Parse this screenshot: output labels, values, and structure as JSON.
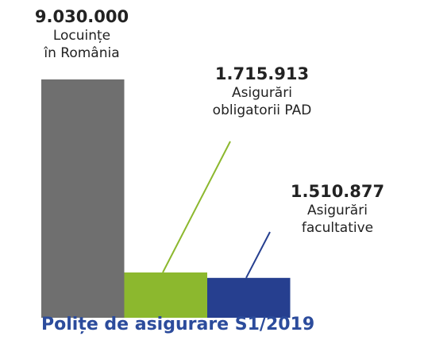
{
  "chart_data": {
    "type": "bar",
    "title": "Polițe de asigurare S1/2019",
    "categories": [
      "Locuințe\nîn România",
      "Asigurări\nobligatorii PAD",
      "Asigurări facultative"
    ],
    "values": [
      9030000,
      1715913,
      1510877
    ],
    "value_labels": [
      "9.030.000",
      "1.715.913",
      "1.510.877"
    ],
    "colors": [
      "#6f6f6f",
      "#8cb82e",
      "#263f8f"
    ]
  }
}
